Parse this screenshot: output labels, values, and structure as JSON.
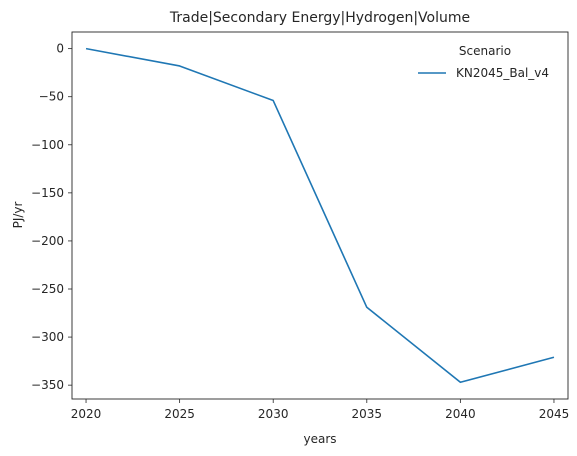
{
  "chart_data": {
    "type": "line",
    "title": "Trade|Secondary Energy|Hydrogen|Volume",
    "xlabel": "years",
    "ylabel": "PJ/yr",
    "x": [
      2020,
      2025,
      2030,
      2035,
      2040,
      2045
    ],
    "xticks": [
      "2020",
      "2025",
      "2030",
      "2035",
      "2040",
      "2045"
    ],
    "yticks": [
      0,
      -50,
      -100,
      -150,
      -200,
      -250,
      -300,
      -350
    ],
    "ytick_labels": [
      "0",
      "−50",
      "−100",
      "−150",
      "−200",
      "−250",
      "−300",
      "−350"
    ],
    "xlim": [
      2019.25,
      2045.75
    ],
    "ylim": [
      -364.4,
      17.3
    ],
    "grid": false,
    "legend": {
      "title": "Scenario",
      "placement": "top-right"
    },
    "series": [
      {
        "name": "KN2045_Bal_v4",
        "color": "#1f77b4",
        "values": [
          0,
          -18,
          -54,
          -269,
          -347,
          -321
        ]
      }
    ]
  }
}
